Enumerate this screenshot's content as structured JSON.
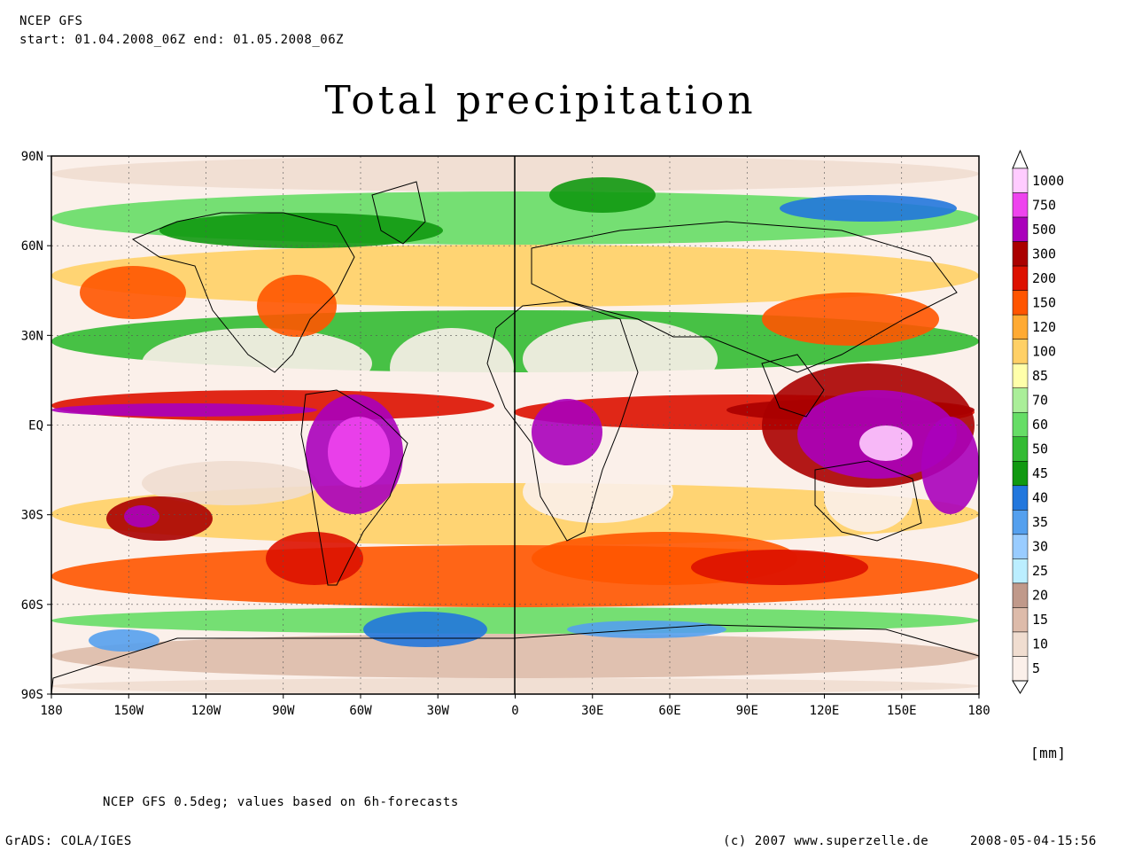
{
  "header": {
    "line1": "NCEP GFS",
    "line2": "start: 01.04.2008_06Z end: 01.05.2008_06Z"
  },
  "title": "Total precipitation",
  "map": {
    "lat_labels": [
      "90N",
      "60N",
      "30N",
      "EQ",
      "30S",
      "60S",
      "90S"
    ],
    "lon_labels": [
      "180",
      "150W",
      "120W",
      "90W",
      "60W",
      "30W",
      "0",
      "30E",
      "60E",
      "90E",
      "120E",
      "150E",
      "180"
    ],
    "grid": true,
    "projection": "lat-lon"
  },
  "legend": {
    "unit": "[mm]",
    "levels": [
      {
        "label": "1000",
        "color": "#ffccff"
      },
      {
        "label": "750",
        "color": "#ee44ee"
      },
      {
        "label": "500",
        "color": "#aa00bb"
      },
      {
        "label": "300",
        "color": "#aa0000"
      },
      {
        "label": "200",
        "color": "#dd1100"
      },
      {
        "label": "150",
        "color": "#ff5500"
      },
      {
        "label": "120",
        "color": "#ffaa33"
      },
      {
        "label": "100",
        "color": "#ffd066"
      },
      {
        "label": "85",
        "color": "#ffffaa"
      },
      {
        "label": "70",
        "color": "#aaee99"
      },
      {
        "label": "60",
        "color": "#66dd66"
      },
      {
        "label": "50",
        "color": "#33bb33"
      },
      {
        "label": "45",
        "color": "#119911"
      },
      {
        "label": "40",
        "color": "#2277dd"
      },
      {
        "label": "35",
        "color": "#55a0ee"
      },
      {
        "label": "30",
        "color": "#99ccff"
      },
      {
        "label": "25",
        "color": "#bbeeff"
      },
      {
        "label": "20",
        "color": "#c0998a"
      },
      {
        "label": "15",
        "color": "#ddbbaa"
      },
      {
        "label": "10",
        "color": "#f0ddd0"
      },
      {
        "label": "5",
        "color": "#fbf0ea"
      }
    ]
  },
  "footer": {
    "note": "NCEP GFS 0.5deg; values based on 6h-forecasts",
    "software": "GrADS: COLA/IGES",
    "copyright": "(c) 2007 www.superzelle.de",
    "timestamp": "2008-05-04-15:56"
  }
}
